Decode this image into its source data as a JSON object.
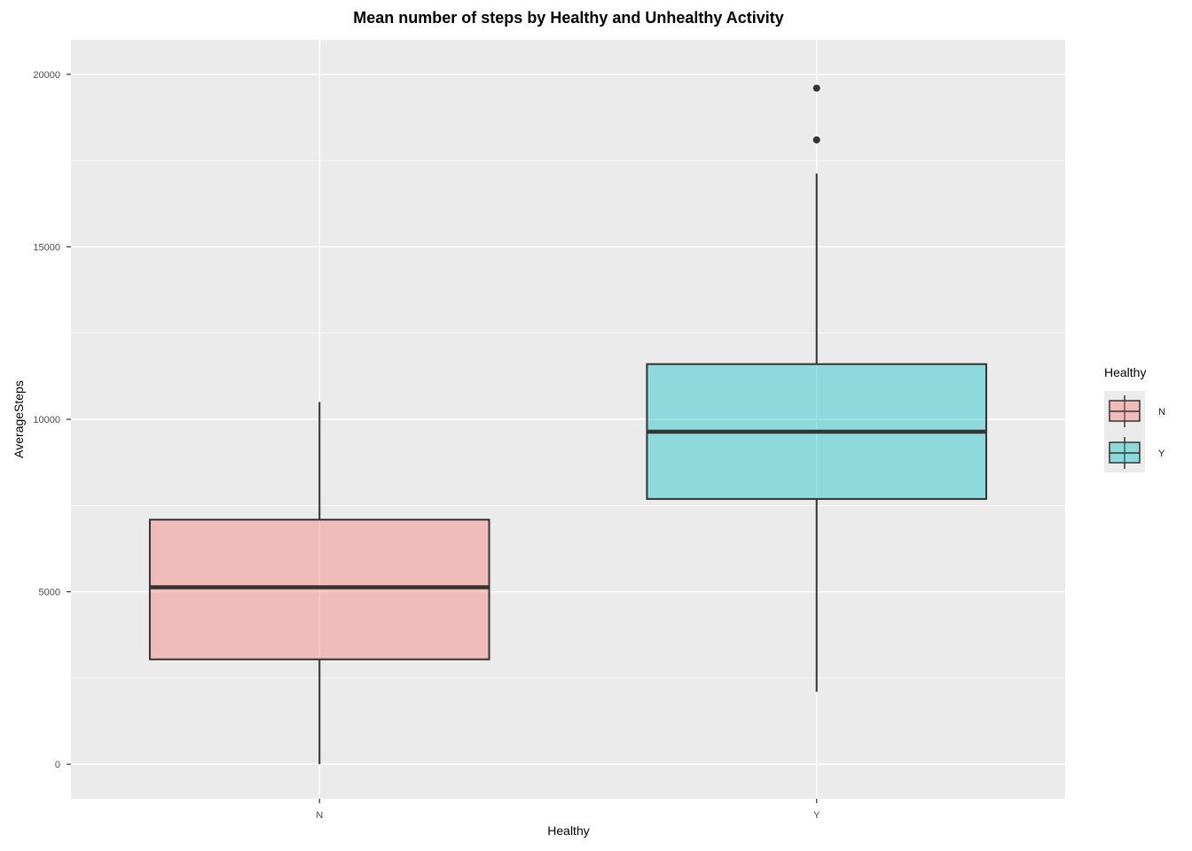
{
  "chart_data": {
    "type": "boxplot",
    "title": "Mean number of steps by Healthy and Unhealthy Activity",
    "xlabel": "Healthy",
    "ylabel": "AverageSteps",
    "categories": [
      "N",
      "Y"
    ],
    "ylim": [
      -1000,
      21000
    ],
    "yticks": [
      0,
      5000,
      10000,
      15000,
      20000
    ],
    "grid": true,
    "legend": {
      "title": "Healthy",
      "position": "right",
      "entries": [
        "N",
        "Y"
      ]
    },
    "boxes": [
      {
        "category": "N",
        "color": "#f8766d",
        "whisker_low": 0,
        "q1": 3040,
        "median": 5130,
        "q3": 7090,
        "whisker_high": 10500,
        "outliers": []
      },
      {
        "category": "Y",
        "color": "#00bfc4",
        "whisker_low": 2100,
        "q1": 7690,
        "median": 9640,
        "q3": 11600,
        "whisker_high": 17130,
        "outliers": [
          18100,
          19600
        ]
      }
    ]
  }
}
